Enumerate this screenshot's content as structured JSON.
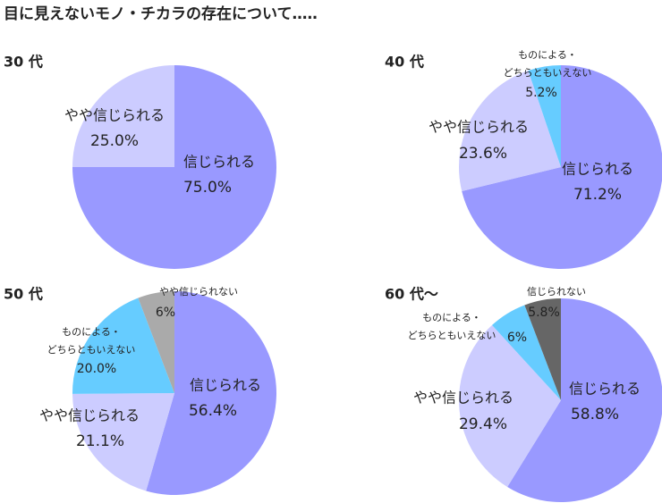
{
  "title": "目に見えないモノ・チカラの存在について…‥",
  "chart_data": [
    {
      "type": "pie",
      "title": "30 代",
      "categories": [
        "信じられる",
        "やや信じられる"
      ],
      "values": [
        75.0,
        25.0
      ],
      "value_labels": [
        "75.0%",
        "25.0%"
      ],
      "colors": [
        "#9999ff",
        "#ccccff"
      ]
    },
    {
      "type": "pie",
      "title": "40 代",
      "categories": [
        "信じられる",
        "やや信じられる",
        "ものによる・どちらともいえない"
      ],
      "values": [
        71.2,
        23.6,
        5.2
      ],
      "value_labels": [
        "71.2%",
        "23.6%",
        "5.2%"
      ],
      "colors": [
        "#9999ff",
        "#ccccff",
        "#66ccff"
      ]
    },
    {
      "type": "pie",
      "title": "50 代",
      "categories": [
        "信じられる",
        "やや信じられる",
        "ものによる・どちらともいえない",
        "やや信じられない"
      ],
      "values": [
        56.4,
        21.1,
        20.0,
        6
      ],
      "value_labels": [
        "56.4%",
        "21.1%",
        "20.0%",
        "6%"
      ],
      "colors": [
        "#9999ff",
        "#ccccff",
        "#66ccff",
        "#aaaaaa"
      ]
    },
    {
      "type": "pie",
      "title": "60 代～",
      "categories": [
        "信じられる",
        "やや信じられる",
        "ものによる・どちらともいえない",
        "信じられない"
      ],
      "values": [
        58.8,
        29.4,
        6,
        5.8
      ],
      "value_labels": [
        "58.8%",
        "29.4%",
        "6%",
        "5.8%"
      ],
      "colors": [
        "#9999ff",
        "#ccccff",
        "#66ccff",
        "#666666"
      ]
    }
  ]
}
